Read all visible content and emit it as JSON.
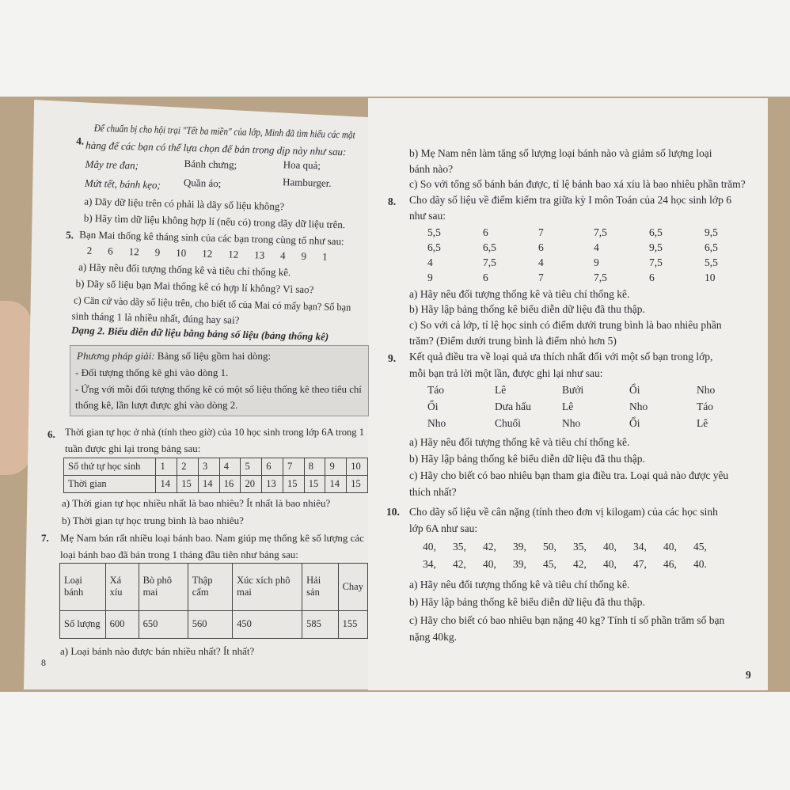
{
  "left_page": {
    "q4": {
      "num": "4.",
      "text1": "Để chuẩn bị cho hội trại \"Tết ba miền\" của lớp, Minh đã tìm hiểu các mặt",
      "text2": "hàng để các bạn có thể lựa chọn để bán trong dịp này như sau:",
      "items": [
        "Mây tre đan;",
        "Bánh chưng;",
        "Hoa quả;",
        "Mứt tết, bánh kẹo;",
        "Quần áo;",
        "Hamburger."
      ],
      "a": "a) Dãy dữ liệu trên có phải là dãy số liệu không?",
      "b": "b) Hãy tìm dữ liệu không hợp lí (nếu có) trong dãy dữ liệu trên."
    },
    "q5": {
      "num": "5.",
      "text": "Bạn Mai thống kê tháng sinh của các bạn trong cùng tổ như sau:",
      "values": [
        "2",
        "6",
        "12",
        "9",
        "10",
        "12",
        "12",
        "13",
        "4",
        "9",
        "1"
      ],
      "a": "a) Hãy nêu đối tượng thống kê và tiêu chí thống kê.",
      "b": "b) Dãy số liệu bạn Mai thống kê có hợp lí không? Vì sao?",
      "c1": "c) Căn cứ vào dãy số liệu trên, cho biết tổ của Mai có mấy bạn? Số bạn",
      "c2": "sinh tháng 1 là nhiều nhất, đúng hay sai?"
    },
    "section": "Dạng 2. Biểu diễn dữ liệu bằng bảng số liệu (bảng thống kê)",
    "method": {
      "label": "Phương pháp giải:",
      "text": "Bảng số liệu gồm hai dòng:",
      "line1": "- Đối tượng thống kê ghi vào dòng 1.",
      "line2": "- Ứng với mỗi đối tượng thống kê có một số liệu thống kê theo tiêu chí",
      "line3": "thống kê, lần lượt được ghi vào dòng 2."
    },
    "q6": {
      "num": "6.",
      "text1": "Thời gian tự học ở nhà (tính theo giờ) của 10 học sinh trong lớp 6A trong 1",
      "text2": "tuần được ghi lại trong bảng sau:",
      "table": {
        "row1_label": "Số thứ tự học sinh",
        "row1": [
          "1",
          "2",
          "3",
          "4",
          "5",
          "6",
          "7",
          "8",
          "9",
          "10"
        ],
        "row2_label": "Thời gian",
        "row2": [
          "14",
          "15",
          "14",
          "16",
          "20",
          "13",
          "15",
          "15",
          "14",
          "15"
        ]
      },
      "a": "a) Thời gian tự học nhiều nhất là bao nhiêu? Ít nhất là bao nhiêu?",
      "b": "b) Thời gian tự học trung bình là bao nhiêu?"
    },
    "q7": {
      "num": "7.",
      "text1": "Mẹ Nam bán rất nhiều loại bánh bao. Nam giúp mẹ thống kê số lượng các",
      "text2": "loại bánh bao đã bán trong 1 tháng đầu tiên như bảng sau:",
      "table": {
        "row1_label": "Loại bánh",
        "row1": [
          "Xá xíu",
          "Bò phô mai",
          "Thập cẩm",
          "Xúc xích phô mai",
          "Hải sản",
          "Chay"
        ],
        "row2_label": "Số lượng",
        "row2": [
          "600",
          "650",
          "560",
          "450",
          "585",
          "155"
        ]
      },
      "a": "a) Loại bánh nào được bán nhiều nhất? Ít nhất?"
    },
    "page_number": "8"
  },
  "right_page": {
    "q7b1": "b) Mẹ Nam nên làm tăng số lượng loại bánh nào và giảm số lượng loại",
    "q7b2": "bánh nào?",
    "q7c": "c) So với tổng số bánh bán được, tỉ lệ bánh bao xá xíu là bao nhiêu phần trăm?",
    "q8": {
      "num": "8.",
      "text1": "Cho dãy số liệu về điểm kiểm tra giữa kỳ I môn Toán của 24 học sinh lớp 6",
      "text2": "như sau:",
      "rows": [
        [
          "5,5",
          "6",
          "7",
          "7,5",
          "6,5",
          "9,5"
        ],
        [
          "6,5",
          "6,5",
          "6",
          "4",
          "9,5",
          "6,5"
        ],
        [
          "4",
          "7,5",
          "4",
          "9",
          "7,5",
          "5,5"
        ],
        [
          "9",
          "6",
          "7",
          "7,5",
          "6",
          "10"
        ]
      ],
      "a": "a) Hãy nêu đối tượng thống kê và tiêu chí thống kê.",
      "b": "b) Hãy lập bảng thống kê biểu diễn dữ liệu đã thu thập.",
      "c1": "c) So với cả lớp, tỉ lệ học sinh có điểm dưới trung bình là bao nhiêu phần",
      "c2": "trăm? (Điểm dưới trung bình là điểm nhỏ hơn 5)"
    },
    "q9": {
      "num": "9.",
      "text1": "Kết quả điều tra về loại quả ưa thích nhất đối với một số bạn trong lớp,",
      "text2": "mỗi bạn trả lời một lần, được ghi lại như sau:",
      "rows": [
        [
          "Táo",
          "Lê",
          "Bưởi",
          "Ổi",
          "Nho"
        ],
        [
          "Ổi",
          "Dưa hấu",
          "Lê",
          "Nho",
          "Táo"
        ],
        [
          "Nho",
          "Chuối",
          "Nho",
          "Ổi",
          "Lê"
        ]
      ],
      "a": "a) Hãy nêu đối tượng thống kê và tiêu chí thống kê.",
      "b": "b) Hãy lập bảng thống kê biểu diễn dữ liệu đã thu thập.",
      "c1": "c) Hãy cho biết có bao nhiêu bạn tham gia điều tra. Loại quả nào được yêu",
      "c2": "thích nhất?"
    },
    "q10": {
      "num": "10.",
      "text1": "Cho dãy số liệu về cân nặng (tính theo đơn vị kilogam) của các học sinh",
      "text2": "lớp 6A như sau:",
      "rows": [
        [
          "40,",
          "35,",
          "42,",
          "39,",
          "50,",
          "35,",
          "40,",
          "34,",
          "40,",
          "45,"
        ],
        [
          "34,",
          "42,",
          "40,",
          "39,",
          "45,",
          "42,",
          "40,",
          "47,",
          "46,",
          "40."
        ]
      ],
      "a": "a) Hãy nêu đối tượng thống kê và tiêu chí thống kê.",
      "b": "b) Hãy lập bảng thống kê biểu diễn dữ liệu đã thu thập.",
      "c1": "c) Hãy cho biết có bao nhiêu bạn nặng 40 kg? Tính tỉ số phần trăm số bạn",
      "c2": "nặng 40kg."
    },
    "page_number": "9"
  }
}
